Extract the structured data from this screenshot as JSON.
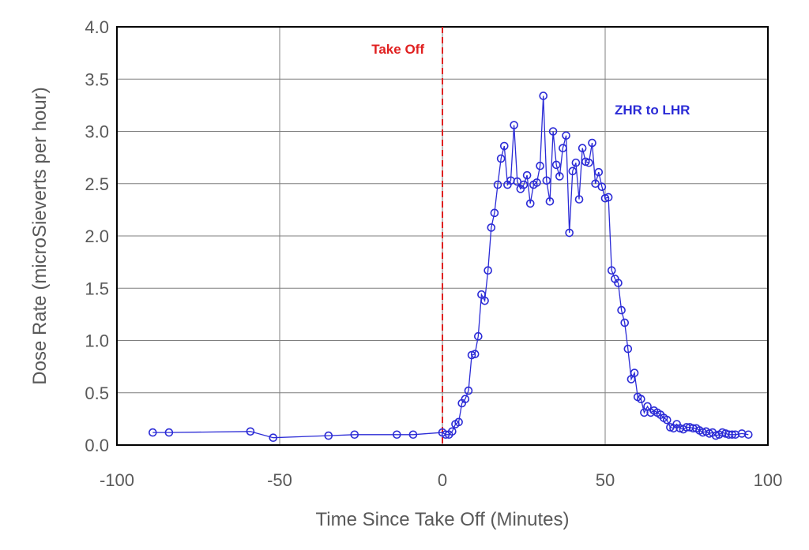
{
  "chart_data": {
    "type": "scatter",
    "title": "",
    "xlabel": "Time Since Take Off (Minutes)",
    "ylabel": "Dose Rate (microSieverts per hour)",
    "xlim": [
      -100,
      100
    ],
    "ylim": [
      0,
      4
    ],
    "x_ticks": [
      -100,
      -50,
      0,
      50,
      100
    ],
    "y_ticks": [
      0,
      0.5,
      1,
      1.5,
      2,
      2.5,
      3,
      3.5,
      4
    ],
    "x_tick_labels": [
      "-100",
      "-50",
      "0",
      "50",
      "100"
    ],
    "y_tick_labels": [
      "0.0",
      "0.5",
      "1.0",
      "1.5",
      "2.0",
      "2.5",
      "3.0",
      "3.5",
      "4.0"
    ],
    "grid": true,
    "line_color": "#2b2bd6",
    "marker": "circle",
    "series": [
      {
        "name": "ZHR to LHR",
        "x": [
          -89,
          -84,
          -59,
          -52,
          -35,
          -27,
          -14,
          -9,
          0,
          1,
          2,
          3,
          4,
          5,
          6,
          7,
          8,
          9,
          10,
          11,
          12,
          13,
          14,
          15,
          16,
          17,
          18,
          19,
          20,
          21,
          22,
          23,
          24,
          25,
          26,
          27,
          28,
          29,
          30,
          31,
          32,
          33,
          34,
          35,
          36,
          37,
          38,
          39,
          40,
          41,
          42,
          43,
          44,
          45,
          46,
          47,
          48,
          49,
          50,
          51,
          52,
          53,
          54,
          55,
          56,
          57,
          58,
          59,
          60,
          61,
          62,
          63,
          64,
          65,
          66,
          67,
          68,
          69,
          70,
          71,
          72,
          73,
          74,
          75,
          76,
          77,
          78,
          79,
          80,
          81,
          82,
          83,
          84,
          85,
          86,
          87,
          88,
          89,
          90,
          92,
          94
        ],
        "y": [
          0.12,
          0.12,
          0.13,
          0.07,
          0.09,
          0.1,
          0.1,
          0.1,
          0.12,
          0.1,
          0.1,
          0.13,
          0.2,
          0.22,
          0.4,
          0.44,
          0.52,
          0.86,
          0.87,
          1.04,
          1.44,
          1.38,
          1.67,
          2.08,
          2.22,
          2.49,
          2.74,
          2.86,
          2.49,
          2.53,
          3.06,
          2.52,
          2.45,
          2.49,
          2.58,
          2.31,
          2.49,
          2.51,
          2.67,
          3.34,
          2.53,
          2.33,
          3.0,
          2.68,
          2.57,
          2.84,
          2.96,
          2.03,
          2.62,
          2.7,
          2.35,
          2.84,
          2.71,
          2.7,
          2.89,
          2.5,
          2.61,
          2.47,
          2.36,
          2.37,
          1.67,
          1.59,
          1.55,
          1.29,
          1.17,
          0.92,
          0.63,
          0.69,
          0.46,
          0.44,
          0.31,
          0.37,
          0.31,
          0.33,
          0.31,
          0.29,
          0.26,
          0.24,
          0.17,
          0.16,
          0.2,
          0.16,
          0.15,
          0.17,
          0.17,
          0.16,
          0.16,
          0.14,
          0.12,
          0.13,
          0.11,
          0.12,
          0.09,
          0.1,
          0.12,
          0.11,
          0.1,
          0.1,
          0.1,
          0.11,
          0.1
        ]
      }
    ],
    "annotations": [
      {
        "text": "Take Off",
        "color": "#e02020",
        "type": "vertical-dashed-line",
        "x": 0
      },
      {
        "text": "ZHR to LHR",
        "color": "#2b2bd6",
        "type": "series-label"
      }
    ]
  }
}
